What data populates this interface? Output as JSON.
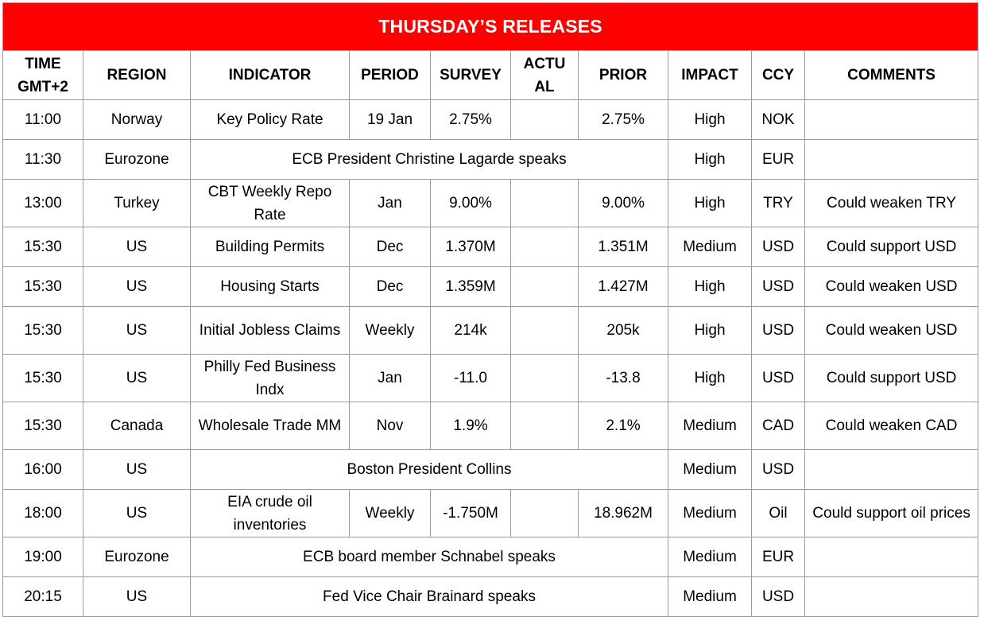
{
  "title": "THURSDAY’S RELEASES",
  "headers": {
    "time_line1": "TIME",
    "time_line2": "GMT+2",
    "region": "REGION",
    "indicator": "INDICATOR",
    "period": "PERIOD",
    "survey": "SURVEY",
    "actual_line1": "ACTU",
    "actual_line2": "AL",
    "prior": "PRIOR",
    "impact": "IMPACT",
    "ccy": "CCY",
    "comments": "COMMENTS"
  },
  "rows": [
    {
      "time": "11:00",
      "region": "Norway",
      "indicator": "Key Policy Rate",
      "period": "19 Jan",
      "survey": "2.75%",
      "actual": "",
      "prior": "2.75%",
      "impact": "High",
      "ccy": "NOK",
      "comments": ""
    },
    {
      "time": "11:30",
      "region": "Eurozone",
      "event": "ECB President Christine Lagarde speaks",
      "impact": "High",
      "ccy": "EUR",
      "comments": ""
    },
    {
      "time": "13:00",
      "region": "Turkey",
      "indicator": "CBT Weekly Repo Rate",
      "period": "Jan",
      "survey": "9.00%",
      "actual": "",
      "prior": "9.00%",
      "impact": "High",
      "ccy": "TRY",
      "comments": "Could weaken TRY"
    },
    {
      "time": "15:30",
      "region": "US",
      "indicator": "Building Permits",
      "period": "Dec",
      "survey": "1.370M",
      "actual": "",
      "prior": "1.351M",
      "impact": "Medium",
      "ccy": "USD",
      "comments": "Could support USD"
    },
    {
      "time": "15:30",
      "region": "US",
      "indicator": "Housing Starts",
      "period": "Dec",
      "survey": "1.359M",
      "actual": "",
      "prior": "1.427M",
      "impact": "High",
      "ccy": "USD",
      "comments": "Could weaken USD"
    },
    {
      "time": "15:30",
      "region": "US",
      "indicator": "Initial Jobless Claims",
      "period": "Weekly",
      "survey": "214k",
      "actual": "",
      "prior": "205k",
      "impact": "High",
      "ccy": "USD",
      "comments": "Could weaken USD"
    },
    {
      "time": "15:30",
      "region": "US",
      "indicator": "Philly Fed Business Indx",
      "period": "Jan",
      "survey": "-11.0",
      "actual": "",
      "prior": "-13.8",
      "impact": "High",
      "ccy": "USD",
      "comments": "Could support USD"
    },
    {
      "time": "15:30",
      "region": "Canada",
      "indicator": "Wholesale Trade MM",
      "period": "Nov",
      "survey": "1.9%",
      "actual": "",
      "prior": "2.1%",
      "impact": "Medium",
      "ccy": "CAD",
      "comments": "Could weaken CAD"
    },
    {
      "time": "16:00",
      "region": "US",
      "event": "Boston President Collins",
      "impact": "Medium",
      "ccy": "USD",
      "comments": ""
    },
    {
      "time": "18:00",
      "region": "US",
      "indicator": "EIA crude oil inventories",
      "period": "Weekly",
      "survey": "-1.750M",
      "actual": "",
      "prior": "18.962M",
      "impact": "Medium",
      "ccy": "Oil",
      "comments": "Could support oil prices"
    },
    {
      "time": "19:00",
      "region": "Eurozone",
      "event": "ECB board member Schnabel speaks",
      "impact": "Medium",
      "ccy": "EUR",
      "comments": ""
    },
    {
      "time": "20:15",
      "region": "US",
      "event": "Fed Vice Chair Brainard speaks",
      "impact": "Medium",
      "ccy": "USD",
      "comments": ""
    }
  ]
}
